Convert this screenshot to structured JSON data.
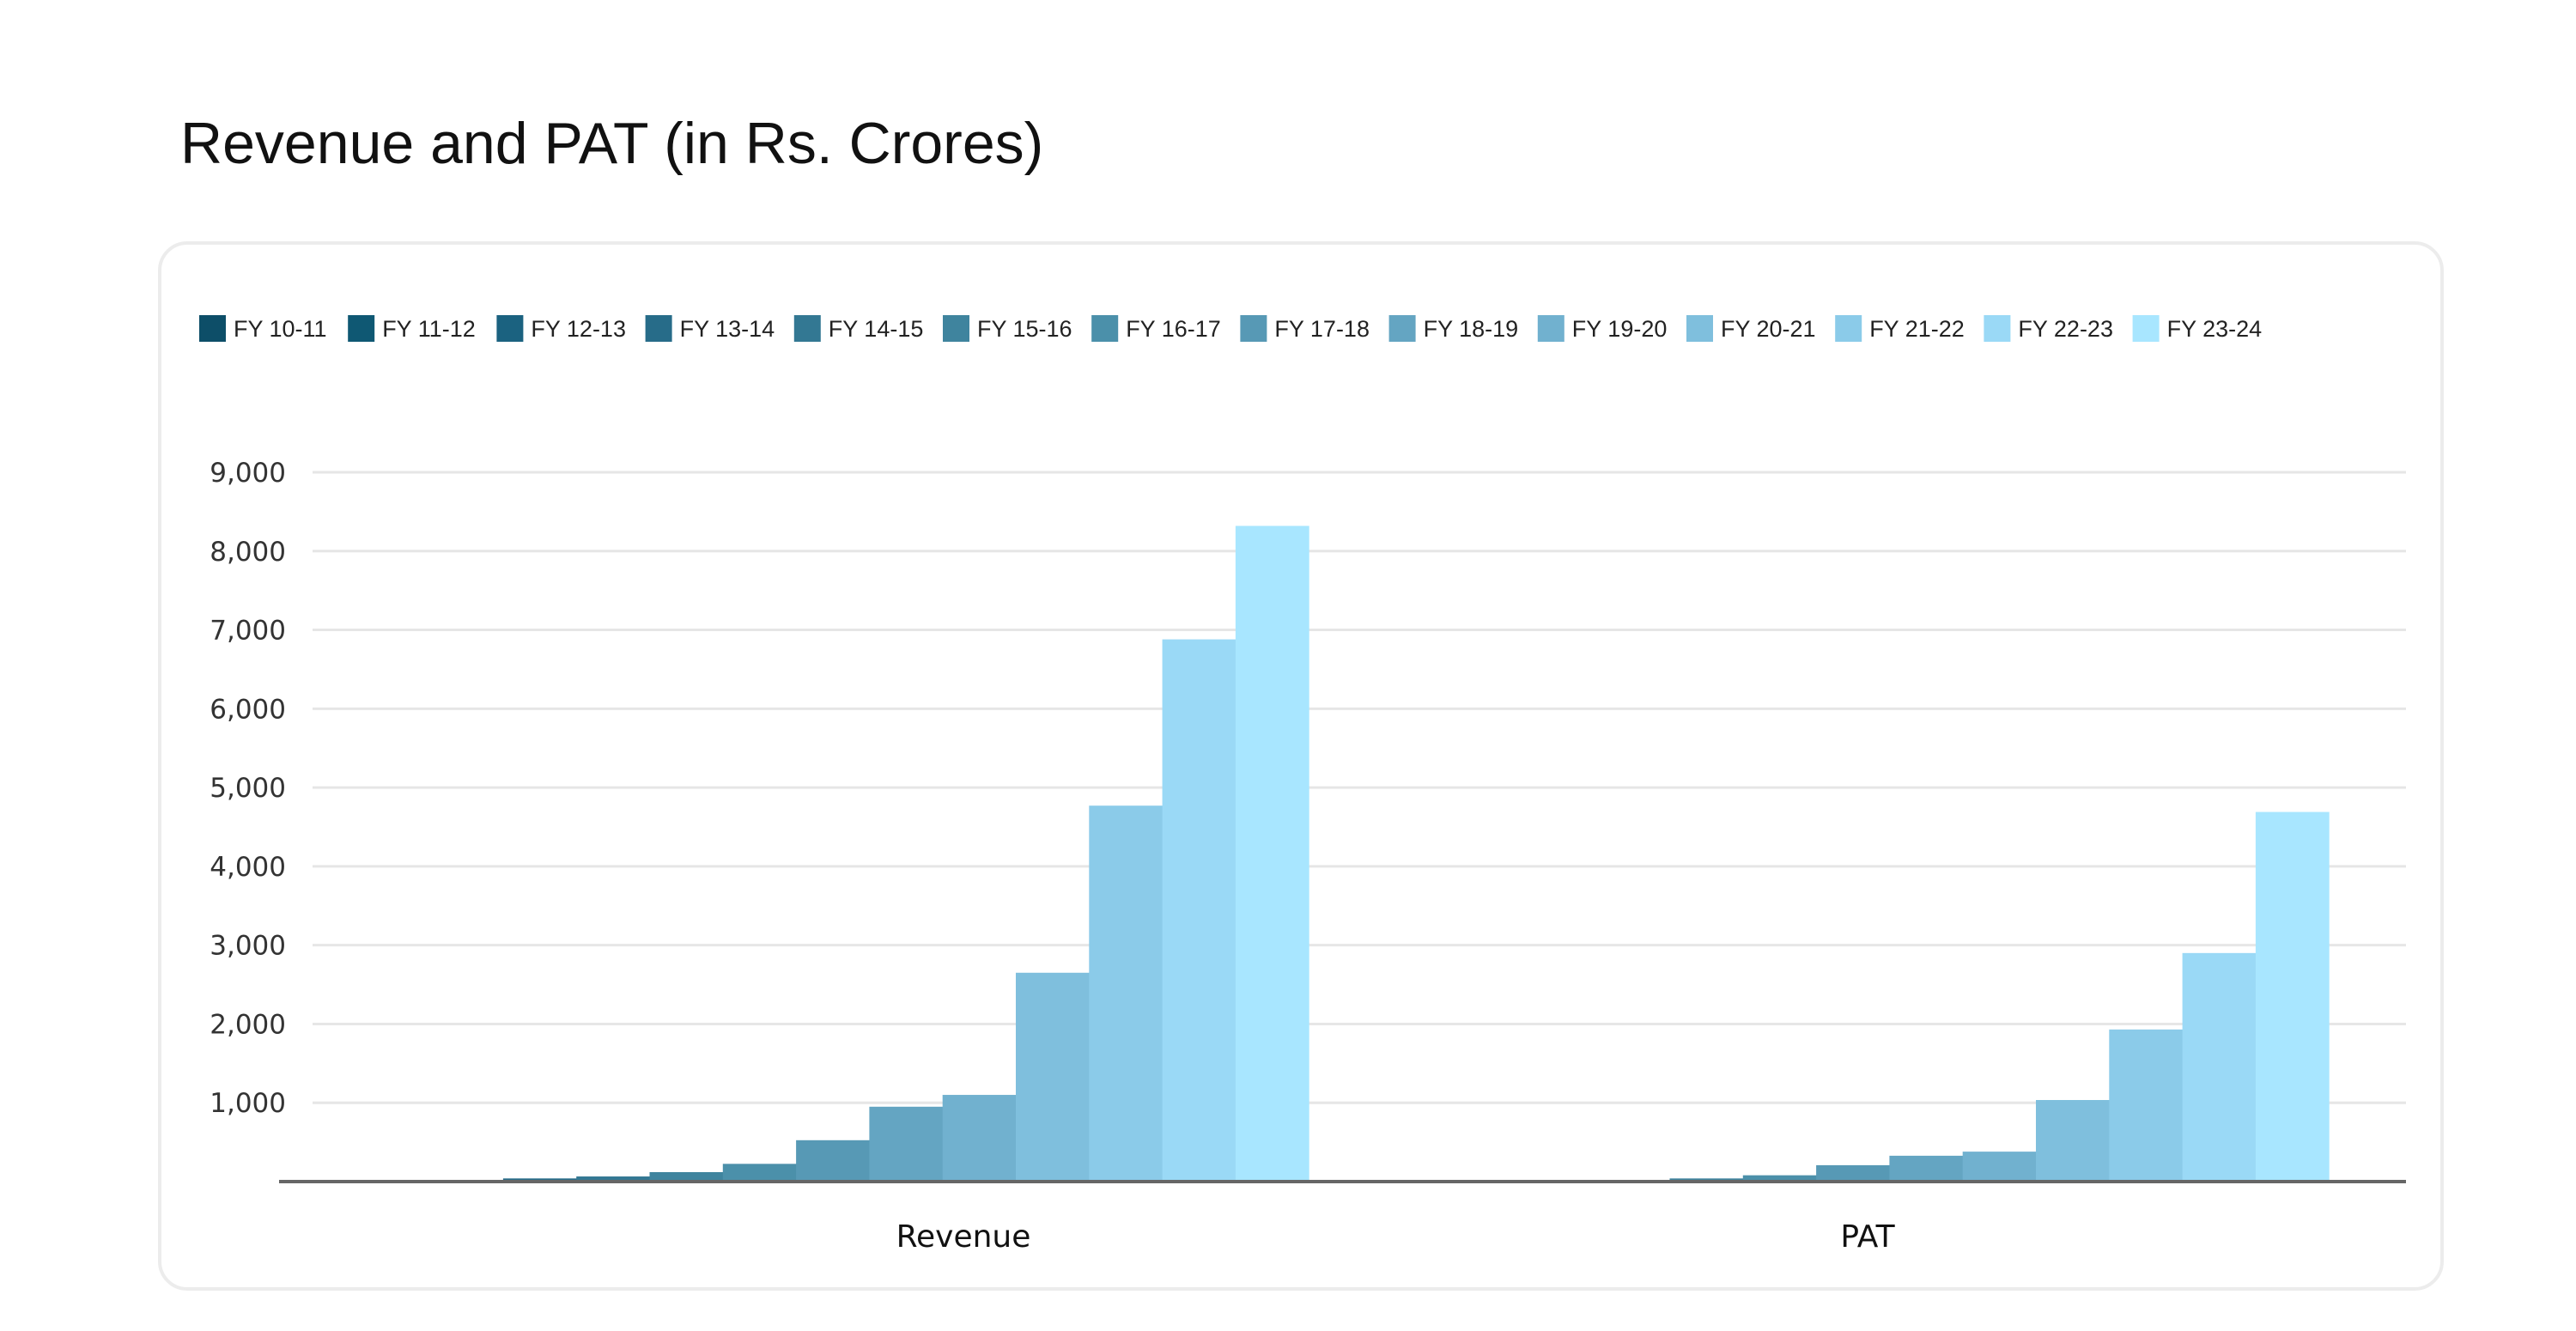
{
  "chart_data": {
    "type": "bar",
    "title": "Revenue and PAT (in Rs. Crores)",
    "categories": [
      "Revenue",
      "PAT"
    ],
    "xlabel": "",
    "ylabel": "",
    "ylim": [
      0,
      9000
    ],
    "yticks": [
      1000,
      2000,
      3000,
      4000,
      5000,
      6000,
      7000,
      8000,
      9000
    ],
    "ytick_labels": [
      "1,000",
      "2,000",
      "3,000",
      "4,000",
      "5,000",
      "6,000",
      "7,000",
      "8,000",
      "9,000"
    ],
    "grid": true,
    "legend_position": "top-left",
    "series": [
      {
        "name": "FY 10-11",
        "color": "#0d4e68",
        "values": [
          5,
          1
        ]
      },
      {
        "name": "FY 11-12",
        "color": "#0f5873",
        "values": [
          10,
          2
        ]
      },
      {
        "name": "FY 12-13",
        "color": "#1b6280",
        "values": [
          20,
          4
        ]
      },
      {
        "name": "FY 13-14",
        "color": "#276c89",
        "values": [
          40,
          8
        ]
      },
      {
        "name": "FY 14-15",
        "color": "#337893",
        "values": [
          65,
          18
        ]
      },
      {
        "name": "FY 15-16",
        "color": "#3f849e",
        "values": [
          120,
          40
        ]
      },
      {
        "name": "FY 16-17",
        "color": "#4b90aa",
        "values": [
          225,
          80
        ]
      },
      {
        "name": "FY 17-18",
        "color": "#5799b5",
        "values": [
          525,
          208
        ]
      },
      {
        "name": "FY 18-19",
        "color": "#64a5c2",
        "values": [
          950,
          328
        ]
      },
      {
        "name": "FY 19-20",
        "color": "#71b1cf",
        "values": [
          1100,
          380
        ]
      },
      {
        "name": "FY 20-21",
        "color": "#7fbfdd",
        "values": [
          2650,
          1035
        ]
      },
      {
        "name": "FY 21-22",
        "color": "#8bcbe9",
        "values": [
          4770,
          1930
        ]
      },
      {
        "name": "FY 22-23",
        "color": "#9ad9f6",
        "values": [
          6880,
          2900
        ]
      },
      {
        "name": "FY 23-24",
        "color": "#a8e6ff",
        "values": [
          8320,
          4690
        ]
      }
    ]
  }
}
